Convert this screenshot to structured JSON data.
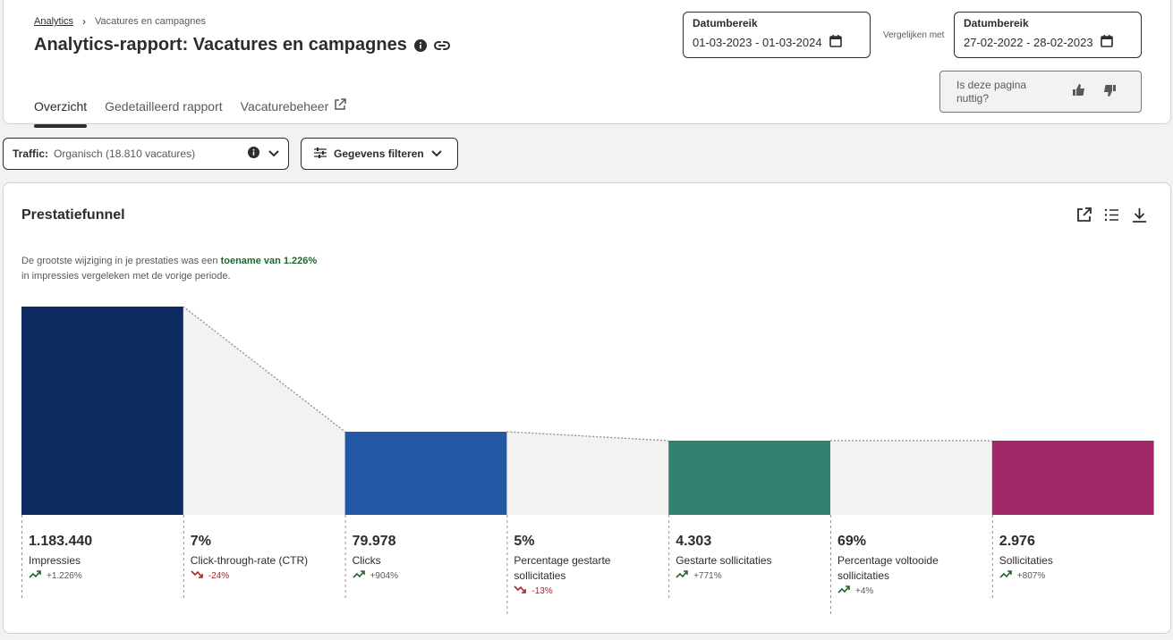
{
  "breadcrumb": {
    "root": "Analytics",
    "current": "Vacatures en campagnes"
  },
  "page": {
    "title": "Analytics-rapport: Vacatures en campagnes"
  },
  "tabs": [
    {
      "label": "Overzicht"
    },
    {
      "label": "Gedetailleerd rapport"
    },
    {
      "label": "Vacaturebeheer"
    }
  ],
  "date_range": {
    "label": "Datumbereik",
    "value": "01-03-2023 - 01-03-2024"
  },
  "compare": {
    "label": "Vergelijken met"
  },
  "compare_range": {
    "label": "Datumbereik",
    "value": "27-02-2022 - 28-02-2023"
  },
  "feedback": {
    "question": "Is deze pagina nuttig?"
  },
  "filters": {
    "traffic_label": "Traffic:",
    "traffic_value": "Organisch (18.810 vacatures)",
    "filter_button": "Gegevens filteren"
  },
  "funnel_card": {
    "title": "Prestatiefunnel",
    "insight_prefix": "De grootste wijziging in je prestaties was een",
    "insight_highlight": "toename van 1.226%",
    "insight_suffix": "in impressies vergeleken met de vorige periode."
  },
  "colors": {
    "impressies": "#0d2b5e",
    "clicks": "#2557a7",
    "gestarte": "#33806f",
    "sollicitaties": "#a1296b",
    "connector": "#f3f2f1",
    "up": "#1f662c",
    "down": "#a9252b"
  },
  "chart_data": {
    "type": "bar",
    "categories": [
      "Impressies",
      "Clicks",
      "Gestarte sollicitaties",
      "Sollicitaties"
    ],
    "values": [
      1183440,
      79978,
      4303,
      2976
    ],
    "rates": [
      {
        "name": "Click-through-rate (CTR)",
        "value": "7%"
      },
      {
        "name": "Percentage gestarte sollicitaties",
        "value": "5%"
      },
      {
        "name": "Percentage voltooide sollicitaties",
        "value": "69%"
      }
    ]
  },
  "metrics": [
    {
      "value": "1.183.440",
      "label": "Impressies",
      "change": "+1.226%",
      "dir": "up"
    },
    {
      "value": "7%",
      "label": "Click-through-rate (CTR)",
      "change": "-24%",
      "dir": "down"
    },
    {
      "value": "79.978",
      "label": "Clicks",
      "change": "+904%",
      "dir": "up"
    },
    {
      "value": "5%",
      "label": "Percentage gestarte sollicitaties",
      "change": "-13%",
      "dir": "down"
    },
    {
      "value": "4.303",
      "label": "Gestarte sollicitaties",
      "change": "+771%",
      "dir": "up"
    },
    {
      "value": "69%",
      "label": "Percentage voltooide sollicitaties",
      "change": "+4%",
      "dir": "up"
    },
    {
      "value": "2.976",
      "label": "Sollicitaties",
      "change": "+807%",
      "dir": "up"
    }
  ]
}
